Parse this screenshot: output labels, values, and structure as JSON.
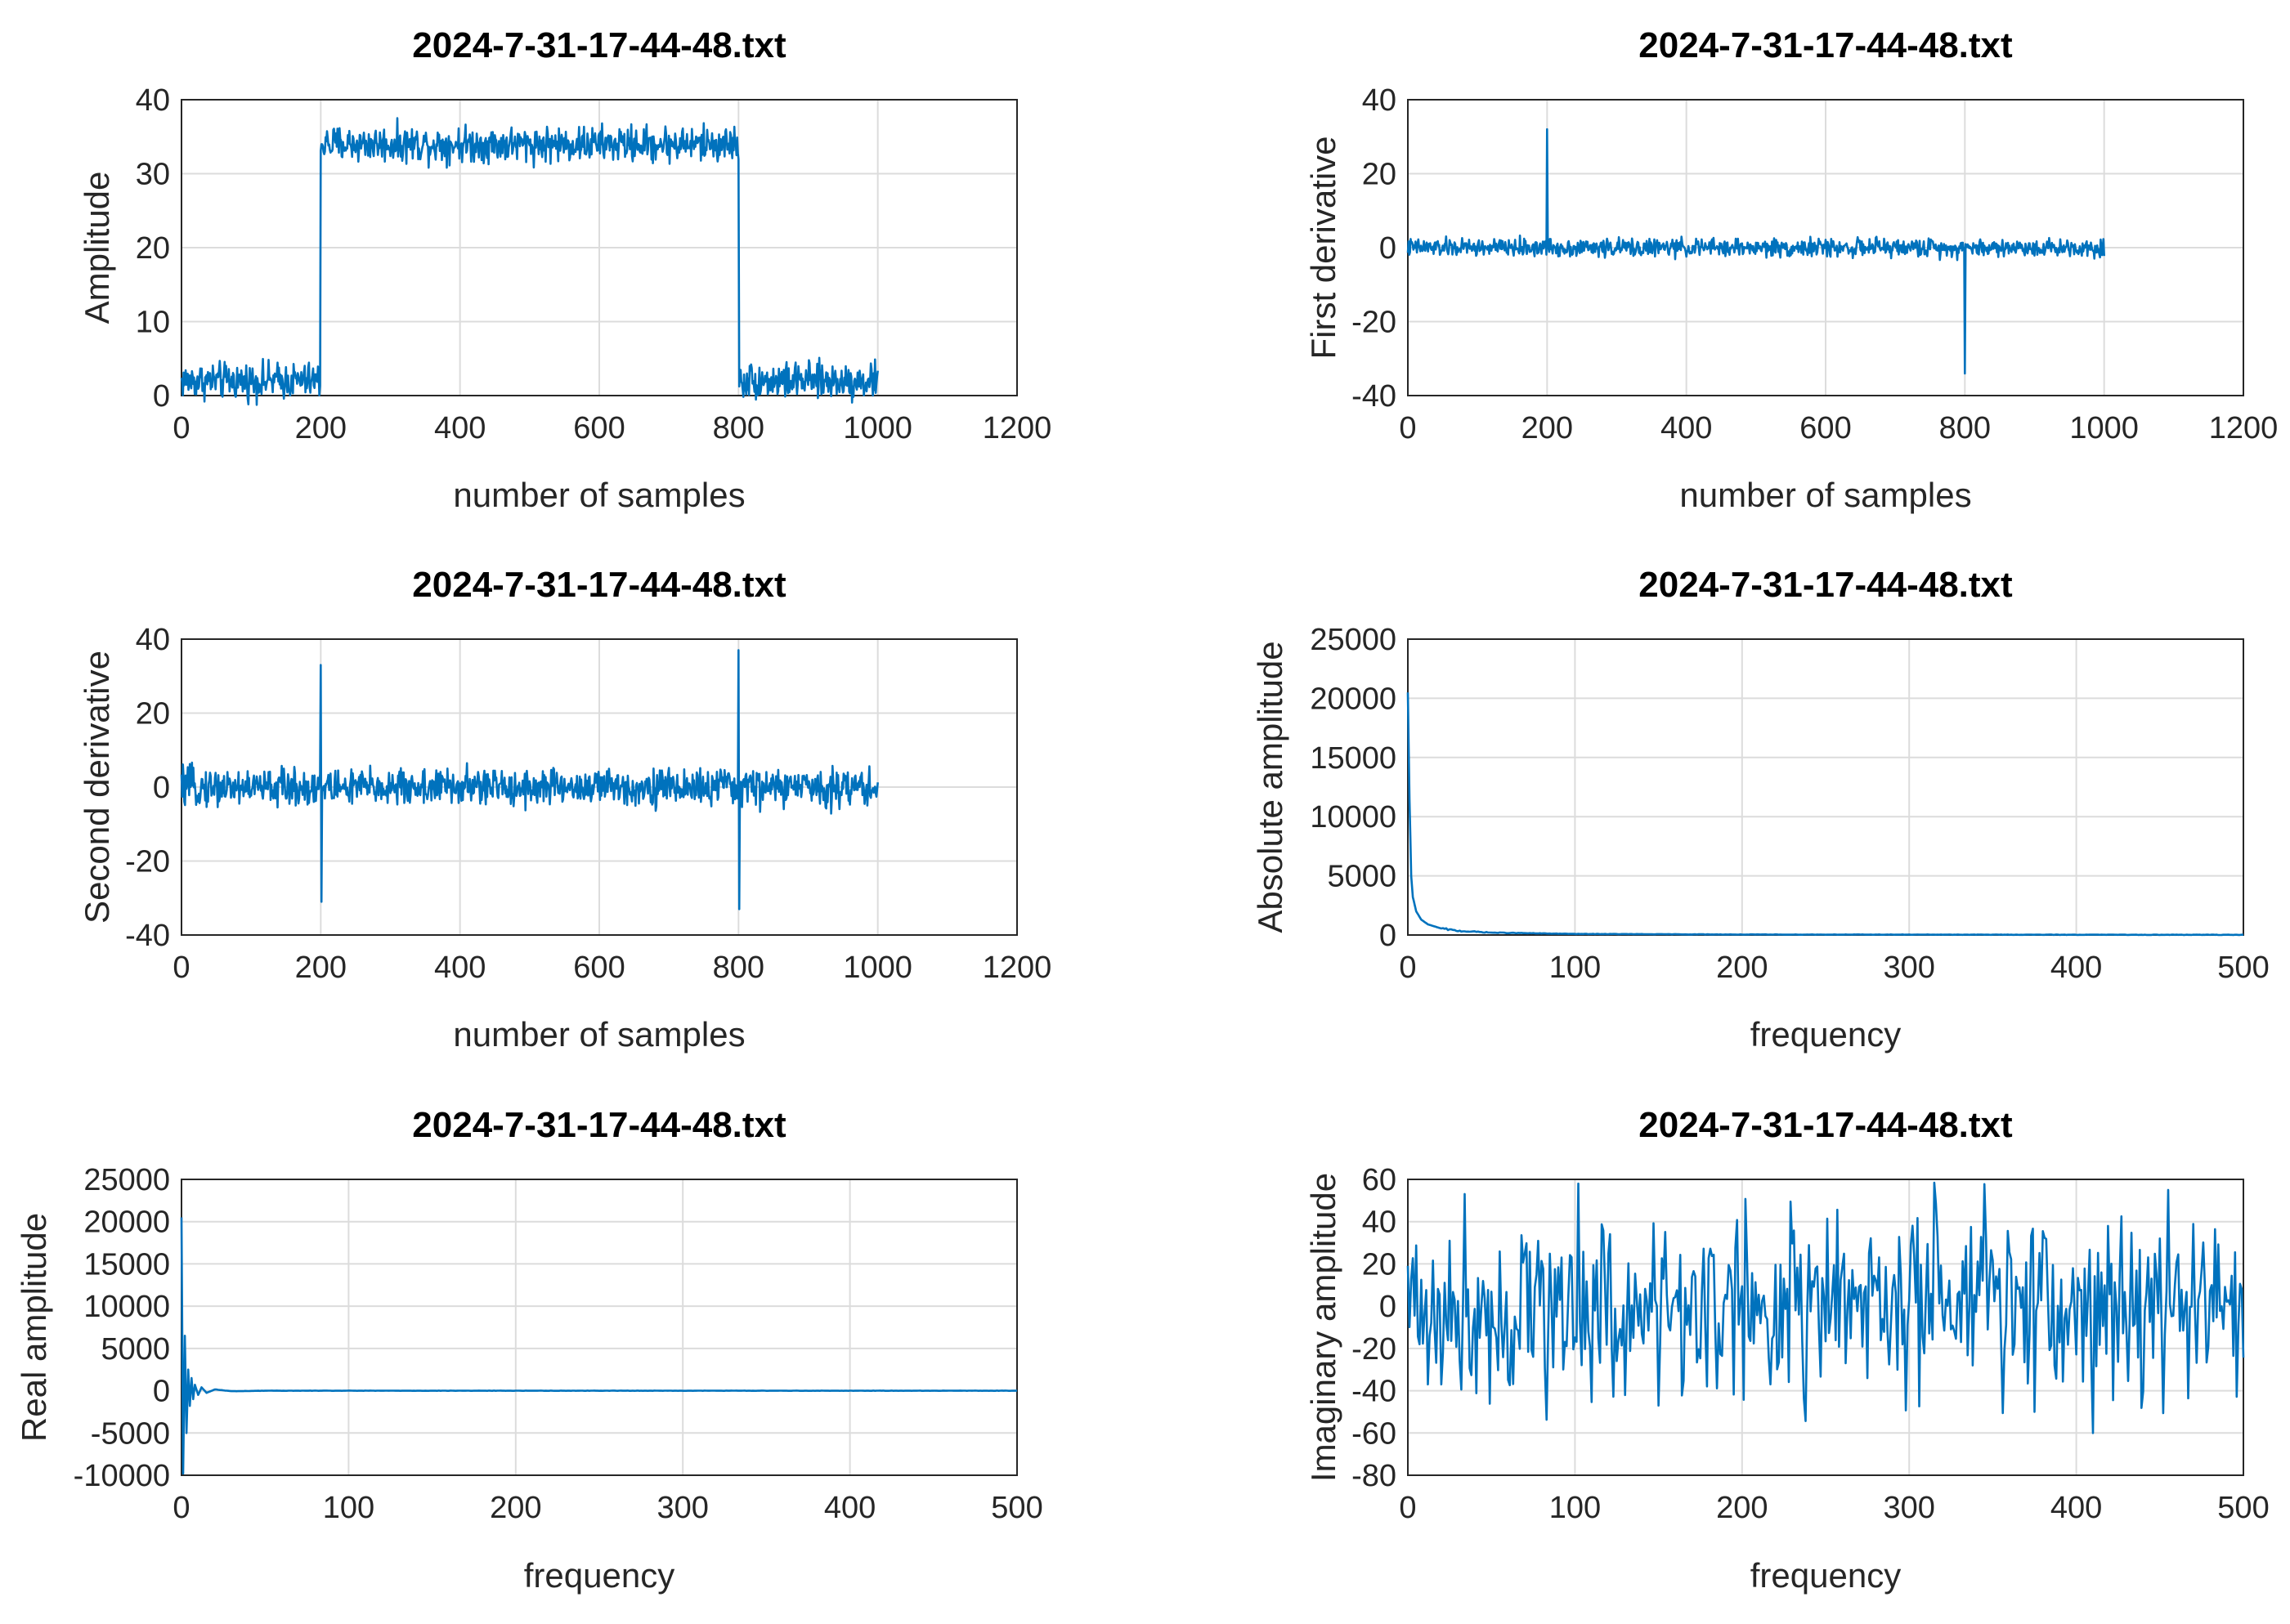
{
  "colors": {
    "series": "#0072BD"
  },
  "chart_data": [
    {
      "type": "line",
      "title": "2024-7-31-17-44-48.txt",
      "xlabel": "number of samples",
      "ylabel": "Amplitude",
      "xlim": [
        0,
        1200
      ],
      "ylim": [
        0,
        40
      ],
      "xticks": [
        "0",
        "200",
        "400",
        "600",
        "800",
        "1000",
        "1200"
      ],
      "yticks": [
        "0",
        "10",
        "20",
        "30",
        "40"
      ],
      "grid": true,
      "series": [
        {
          "x": [
            0,
            1,
            199,
            200,
            800,
            801,
            1000
          ],
          "values": [
            2,
            2,
            2,
            34,
            34,
            2,
            2
          ],
          "noise": 1.2
        }
      ]
    },
    {
      "type": "line",
      "title": "2024-7-31-17-44-48.txt",
      "xlabel": "number of samples",
      "ylabel": "First derivative",
      "xlim": [
        0,
        1200
      ],
      "ylim": [
        -40,
        40
      ],
      "xticks": [
        "0",
        "200",
        "400",
        "600",
        "800",
        "1000",
        "1200"
      ],
      "yticks": [
        "-40",
        "-20",
        "0",
        "20",
        "40"
      ],
      "grid": true,
      "series": [
        {
          "x": [
            0,
            199,
            200,
            201,
            799,
            800,
            801,
            1000
          ],
          "values": [
            0,
            0,
            32,
            0,
            0,
            -34,
            0,
            0
          ],
          "noise": 1.2
        }
      ]
    },
    {
      "type": "line",
      "title": "2024-7-31-17-44-48.txt",
      "xlabel": "number of samples",
      "ylabel": "Second derivative",
      "xlim": [
        0,
        1200
      ],
      "ylim": [
        -40,
        40
      ],
      "xticks": [
        "0",
        "200",
        "400",
        "600",
        "800",
        "1000",
        "1200"
      ],
      "yticks": [
        "-40",
        "-20",
        "0",
        "20",
        "40"
      ],
      "grid": true,
      "series": [
        {
          "x": [
            0,
            199,
            200,
            201,
            202,
            799,
            800,
            801,
            802,
            1000
          ],
          "values": [
            0,
            0,
            33,
            -31,
            0,
            0,
            37,
            -33,
            0,
            0
          ],
          "noise": 2.5
        }
      ]
    },
    {
      "type": "line",
      "title": "2024-7-31-17-44-48.txt",
      "xlabel": "frequency",
      "ylabel": "Absolute amplitude",
      "xlim": [
        0,
        500
      ],
      "ylim": [
        0,
        25000
      ],
      "xticks": [
        "0",
        "100",
        "200",
        "300",
        "400",
        "500"
      ],
      "yticks": [
        "0",
        "5000",
        "10000",
        "15000",
        "20000",
        "25000"
      ],
      "grid": true,
      "series": [
        {
          "x": [
            0,
            1,
            2,
            3,
            5,
            8,
            12,
            20,
            30,
            50,
            100,
            200,
            500
          ],
          "values": [
            20500,
            11500,
            5000,
            3200,
            2000,
            1300,
            900,
            550,
            350,
            200,
            90,
            40,
            15
          ],
          "noise": 0
        }
      ]
    },
    {
      "type": "line",
      "title": "2024-7-31-17-44-48.txt",
      "xlabel": "frequency",
      "ylabel": "Real amplitude",
      "xlim": [
        0,
        500
      ],
      "ylim": [
        -10000,
        25000
      ],
      "xticks": [
        "0",
        "100",
        "200",
        "300",
        "400",
        "500"
      ],
      "yticks": [
        "-10000",
        "-5000",
        "0",
        "5000",
        "10000",
        "15000",
        "20000",
        "25000"
      ],
      "grid": true,
      "series": [
        {
          "x": [
            0,
            1,
            2,
            3,
            4,
            5,
            6,
            7,
            8,
            10,
            12,
            15,
            20,
            30,
            50,
            500
          ],
          "values": [
            20500,
            -9800,
            6500,
            -5000,
            2500,
            -1800,
            1500,
            -1000,
            700,
            -500,
            400,
            -250,
            150,
            -60,
            0,
            0
          ],
          "noise": 0
        }
      ]
    },
    {
      "type": "line",
      "title": "2024-7-31-17-44-48.txt",
      "xlabel": "frequency",
      "ylabel": "Imaginary amplitude",
      "xlim": [
        0,
        500
      ],
      "ylim": [
        -80,
        60
      ],
      "xticks": [
        "0",
        "100",
        "200",
        "300",
        "400",
        "500"
      ],
      "yticks": [
        "-80",
        "-60",
        "-40",
        "-20",
        "0",
        "20",
        "40",
        "60"
      ],
      "grid": true,
      "series": [
        {
          "x": [
            0,
            500
          ],
          "values": [
            0,
            0
          ],
          "noise": 22,
          "extremes": [
            [
              102,
              58
            ],
            [
              410,
              -60
            ],
            [
              150,
              -47
            ],
            [
              455,
              55
            ],
            [
              375,
              -50
            ],
            [
              20,
              -37
            ]
          ]
        }
      ]
    }
  ]
}
